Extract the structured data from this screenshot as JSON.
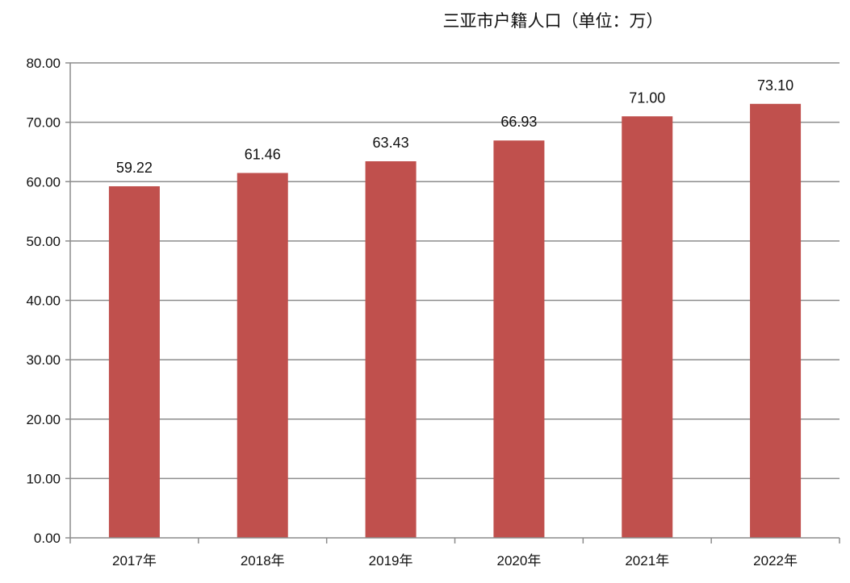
{
  "chart_data": {
    "type": "bar",
    "title": "三亚市户籍人口（单位：万）",
    "categories": [
      "2017年",
      "2018年",
      "2019年",
      "2020年",
      "2021年",
      "2022年"
    ],
    "values": [
      59.22,
      61.46,
      63.43,
      66.93,
      71.0,
      73.1
    ],
    "value_labels": [
      "59.22",
      "61.46",
      "63.43",
      "66.93",
      "71.00",
      "73.10"
    ],
    "y_ticks": [
      "0.00",
      "10.00",
      "20.00",
      "30.00",
      "40.00",
      "50.00",
      "60.00",
      "70.00",
      "80.00"
    ],
    "ylim": [
      0,
      80
    ],
    "xlabel": "",
    "ylabel": "",
    "grid": true,
    "legend": "none",
    "bar_color": "#c0504d",
    "grid_color": "#8c8c8c"
  }
}
